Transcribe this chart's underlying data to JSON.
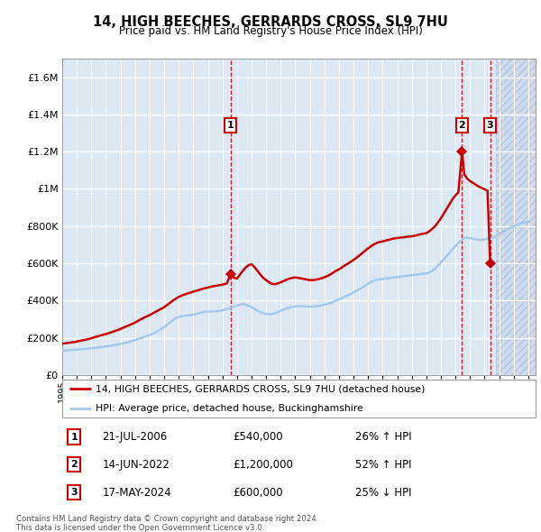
{
  "title": "14, HIGH BEECHES, GERRARDS CROSS, SL9 7HU",
  "subtitle": "Price paid vs. HM Land Registry's House Price Index (HPI)",
  "legend_line1": "14, HIGH BEECHES, GERRARDS CROSS, SL9 7HU (detached house)",
  "legend_line2": "HPI: Average price, detached house, Buckinghamshire",
  "footer1": "Contains HM Land Registry data © Crown copyright and database right 2024.",
  "footer2": "This data is licensed under the Open Government Licence v3.0.",
  "transactions": [
    {
      "num": 1,
      "date": "21-JUL-2006",
      "price": "£540,000",
      "hpi": "26% ↑ HPI",
      "year": 2006.55,
      "price_val": 540000
    },
    {
      "num": 2,
      "date": "14-JUN-2022",
      "price": "£1,200,000",
      "hpi": "52% ↑ HPI",
      "year": 2022.45,
      "price_val": 1200000
    },
    {
      "num": 3,
      "date": "17-MAY-2024",
      "price": "£600,000",
      "hpi": "25% ↓ HPI",
      "year": 2024.38,
      "price_val": 600000
    }
  ],
  "hpi_color": "#a8c8e8",
  "price_color": "#cc0000",
  "background_color": "#dce9f5",
  "grid_color": "#ffffff",
  "ylim": [
    0,
    1700000
  ],
  "xlim_start": 1995.0,
  "xlim_end": 2027.5,
  "future_start": 2024.75,
  "yticks": [
    0,
    200000,
    400000,
    600000,
    800000,
    1000000,
    1200000,
    1400000,
    1600000
  ],
  "ytick_labels": [
    "£0",
    "£200K",
    "£400K",
    "£600K",
    "£800K",
    "£1M",
    "£1.2M",
    "£1.4M",
    "£1.6M"
  ],
  "hpi_data": [
    [
      1995.0,
      132000
    ],
    [
      1995.2,
      133000
    ],
    [
      1995.4,
      133500
    ],
    [
      1995.6,
      134000
    ],
    [
      1995.8,
      135000
    ],
    [
      1996.0,
      136000
    ],
    [
      1996.2,
      137500
    ],
    [
      1996.4,
      139000
    ],
    [
      1996.6,
      140500
    ],
    [
      1996.8,
      142000
    ],
    [
      1997.0,
      144000
    ],
    [
      1997.2,
      146000
    ],
    [
      1997.4,
      148000
    ],
    [
      1997.6,
      150000
    ],
    [
      1997.8,
      152000
    ],
    [
      1998.0,
      154000
    ],
    [
      1998.2,
      156000
    ],
    [
      1998.4,
      158000
    ],
    [
      1998.6,
      161000
    ],
    [
      1998.8,
      164000
    ],
    [
      1999.0,
      167000
    ],
    [
      1999.2,
      170000
    ],
    [
      1999.4,
      174000
    ],
    [
      1999.6,
      178000
    ],
    [
      1999.8,
      183000
    ],
    [
      2000.0,
      188000
    ],
    [
      2000.2,
      193000
    ],
    [
      2000.4,
      198000
    ],
    [
      2000.6,
      204000
    ],
    [
      2000.8,
      210000
    ],
    [
      2001.0,
      216000
    ],
    [
      2001.2,
      222000
    ],
    [
      2001.4,
      228000
    ],
    [
      2001.6,
      238000
    ],
    [
      2001.8,
      248000
    ],
    [
      2002.0,
      258000
    ],
    [
      2002.2,
      270000
    ],
    [
      2002.4,
      283000
    ],
    [
      2002.6,
      296000
    ],
    [
      2002.8,
      306000
    ],
    [
      2003.0,
      312000
    ],
    [
      2003.2,
      316000
    ],
    [
      2003.4,
      318000
    ],
    [
      2003.6,
      320000
    ],
    [
      2003.8,
      322000
    ],
    [
      2004.0,
      325000
    ],
    [
      2004.2,
      328000
    ],
    [
      2004.4,
      332000
    ],
    [
      2004.6,
      336000
    ],
    [
      2004.8,
      340000
    ],
    [
      2005.0,
      341000
    ],
    [
      2005.2,
      341500
    ],
    [
      2005.4,
      342000
    ],
    [
      2005.6,
      343000
    ],
    [
      2005.8,
      345000
    ],
    [
      2006.0,
      348000
    ],
    [
      2006.2,
      352000
    ],
    [
      2006.4,
      356000
    ],
    [
      2006.6,
      362000
    ],
    [
      2006.8,
      368000
    ],
    [
      2007.0,
      374000
    ],
    [
      2007.2,
      378000
    ],
    [
      2007.4,
      382000
    ],
    [
      2007.6,
      378000
    ],
    [
      2007.8,
      372000
    ],
    [
      2008.0,
      365000
    ],
    [
      2008.2,
      355000
    ],
    [
      2008.4,
      345000
    ],
    [
      2008.6,
      338000
    ],
    [
      2008.8,
      332000
    ],
    [
      2009.0,
      328000
    ],
    [
      2009.2,
      327000
    ],
    [
      2009.4,
      328000
    ],
    [
      2009.6,
      332000
    ],
    [
      2009.8,
      338000
    ],
    [
      2010.0,
      345000
    ],
    [
      2010.2,
      352000
    ],
    [
      2010.4,
      358000
    ],
    [
      2010.6,
      362000
    ],
    [
      2010.8,
      366000
    ],
    [
      2011.0,
      369000
    ],
    [
      2011.2,
      370000
    ],
    [
      2011.4,
      370000
    ],
    [
      2011.6,
      369000
    ],
    [
      2011.8,
      368000
    ],
    [
      2012.0,
      367000
    ],
    [
      2012.2,
      368000
    ],
    [
      2012.4,
      369000
    ],
    [
      2012.6,
      371000
    ],
    [
      2012.8,
      374000
    ],
    [
      2013.0,
      378000
    ],
    [
      2013.2,
      382000
    ],
    [
      2013.4,
      387000
    ],
    [
      2013.6,
      393000
    ],
    [
      2013.8,
      400000
    ],
    [
      2014.0,
      407000
    ],
    [
      2014.2,
      414000
    ],
    [
      2014.4,
      421000
    ],
    [
      2014.6,
      428000
    ],
    [
      2014.8,
      435000
    ],
    [
      2015.0,
      443000
    ],
    [
      2015.2,
      452000
    ],
    [
      2015.4,
      461000
    ],
    [
      2015.6,
      470000
    ],
    [
      2015.8,
      480000
    ],
    [
      2016.0,
      490000
    ],
    [
      2016.2,
      500000
    ],
    [
      2016.4,
      508000
    ],
    [
      2016.6,
      512000
    ],
    [
      2016.8,
      514000
    ],
    [
      2017.0,
      516000
    ],
    [
      2017.2,
      518000
    ],
    [
      2017.4,
      520000
    ],
    [
      2017.6,
      522000
    ],
    [
      2017.8,
      524000
    ],
    [
      2018.0,
      526000
    ],
    [
      2018.2,
      528000
    ],
    [
      2018.4,
      530000
    ],
    [
      2018.6,
      532000
    ],
    [
      2018.8,
      534000
    ],
    [
      2019.0,
      536000
    ],
    [
      2019.2,
      538000
    ],
    [
      2019.4,
      540000
    ],
    [
      2019.6,
      542000
    ],
    [
      2019.8,
      544000
    ],
    [
      2020.0,
      546000
    ],
    [
      2020.2,
      552000
    ],
    [
      2020.4,
      560000
    ],
    [
      2020.6,
      572000
    ],
    [
      2020.8,
      588000
    ],
    [
      2021.0,
      605000
    ],
    [
      2021.2,
      622000
    ],
    [
      2021.4,
      640000
    ],
    [
      2021.6,
      658000
    ],
    [
      2021.8,
      676000
    ],
    [
      2022.0,
      694000
    ],
    [
      2022.2,
      710000
    ],
    [
      2022.4,
      724000
    ],
    [
      2022.6,
      734000
    ],
    [
      2022.8,
      738000
    ],
    [
      2023.0,
      736000
    ],
    [
      2023.2,
      732000
    ],
    [
      2023.4,
      728000
    ],
    [
      2023.6,
      726000
    ],
    [
      2023.8,
      726000
    ],
    [
      2024.0,
      728000
    ],
    [
      2024.2,
      732000
    ],
    [
      2024.4,
      736000
    ],
    [
      2024.6,
      740000
    ],
    [
      2024.75,
      745000
    ],
    [
      2025.0,
      760000
    ],
    [
      2025.5,
      780000
    ],
    [
      2026.0,
      800000
    ],
    [
      2026.5,
      815000
    ],
    [
      2027.0,
      825000
    ]
  ],
  "price_data": [
    [
      1995.0,
      168000
    ],
    [
      1995.3,
      172000
    ],
    [
      1995.6,
      175000
    ],
    [
      1995.9,
      178000
    ],
    [
      1996.0,
      180000
    ],
    [
      1996.3,
      185000
    ],
    [
      1996.6,
      190000
    ],
    [
      1996.9,
      195000
    ],
    [
      1997.0,
      198000
    ],
    [
      1997.3,
      205000
    ],
    [
      1997.6,
      212000
    ],
    [
      1997.9,
      218000
    ],
    [
      1998.0,
      220000
    ],
    [
      1998.3,
      228000
    ],
    [
      1998.6,
      236000
    ],
    [
      1998.9,
      244000
    ],
    [
      1999.0,
      248000
    ],
    [
      1999.3,
      258000
    ],
    [
      1999.6,
      268000
    ],
    [
      1999.9,
      278000
    ],
    [
      2000.0,
      282000
    ],
    [
      2000.3,
      295000
    ],
    [
      2000.6,
      308000
    ],
    [
      2000.9,
      318000
    ],
    [
      2001.0,
      322000
    ],
    [
      2001.3,
      335000
    ],
    [
      2001.6,
      348000
    ],
    [
      2001.9,
      360000
    ],
    [
      2002.0,
      365000
    ],
    [
      2002.3,
      382000
    ],
    [
      2002.6,
      400000
    ],
    [
      2002.9,
      415000
    ],
    [
      2003.0,
      420000
    ],
    [
      2003.3,
      430000
    ],
    [
      2003.6,
      438000
    ],
    [
      2003.9,
      445000
    ],
    [
      2004.0,
      448000
    ],
    [
      2004.3,
      455000
    ],
    [
      2004.6,
      462000
    ],
    [
      2004.9,
      468000
    ],
    [
      2005.0,
      470000
    ],
    [
      2005.3,
      476000
    ],
    [
      2005.6,
      480000
    ],
    [
      2005.9,
      484000
    ],
    [
      2006.0,
      486000
    ],
    [
      2006.3,
      492000
    ],
    [
      2006.55,
      540000
    ],
    [
      2006.8,
      522000
    ],
    [
      2007.0,
      518000
    ],
    [
      2007.2,
      540000
    ],
    [
      2007.4,
      560000
    ],
    [
      2007.6,
      578000
    ],
    [
      2007.8,
      590000
    ],
    [
      2008.0,
      595000
    ],
    [
      2008.2,
      580000
    ],
    [
      2008.4,
      560000
    ],
    [
      2008.6,
      540000
    ],
    [
      2008.8,
      522000
    ],
    [
      2009.0,
      510000
    ],
    [
      2009.2,
      498000
    ],
    [
      2009.4,
      490000
    ],
    [
      2009.6,
      488000
    ],
    [
      2009.8,
      492000
    ],
    [
      2010.0,
      498000
    ],
    [
      2010.2,
      505000
    ],
    [
      2010.4,
      512000
    ],
    [
      2010.6,
      518000
    ],
    [
      2010.8,
      522000
    ],
    [
      2011.0,
      524000
    ],
    [
      2011.2,
      522000
    ],
    [
      2011.4,
      519000
    ],
    [
      2011.6,
      516000
    ],
    [
      2011.8,
      513000
    ],
    [
      2012.0,
      510000
    ],
    [
      2012.2,
      510000
    ],
    [
      2012.4,
      512000
    ],
    [
      2012.6,
      515000
    ],
    [
      2012.8,
      520000
    ],
    [
      2013.0,
      525000
    ],
    [
      2013.2,
      532000
    ],
    [
      2013.4,
      540000
    ],
    [
      2013.6,
      550000
    ],
    [
      2013.8,
      560000
    ],
    [
      2014.0,
      568000
    ],
    [
      2014.2,
      578000
    ],
    [
      2014.4,
      588000
    ],
    [
      2014.6,
      598000
    ],
    [
      2014.8,
      608000
    ],
    [
      2015.0,
      618000
    ],
    [
      2015.2,
      630000
    ],
    [
      2015.4,
      642000
    ],
    [
      2015.6,
      655000
    ],
    [
      2015.8,
      668000
    ],
    [
      2016.0,
      680000
    ],
    [
      2016.2,
      692000
    ],
    [
      2016.4,
      702000
    ],
    [
      2016.6,
      710000
    ],
    [
      2016.8,
      715000
    ],
    [
      2017.0,
      718000
    ],
    [
      2017.2,
      722000
    ],
    [
      2017.4,
      726000
    ],
    [
      2017.6,
      730000
    ],
    [
      2017.8,
      734000
    ],
    [
      2018.0,
      736000
    ],
    [
      2018.2,
      738000
    ],
    [
      2018.4,
      740000
    ],
    [
      2018.6,
      742000
    ],
    [
      2018.8,
      744000
    ],
    [
      2019.0,
      745000
    ],
    [
      2019.2,
      748000
    ],
    [
      2019.4,
      752000
    ],
    [
      2019.6,
      756000
    ],
    [
      2019.8,
      760000
    ],
    [
      2020.0,
      762000
    ],
    [
      2020.2,
      772000
    ],
    [
      2020.4,
      785000
    ],
    [
      2020.6,
      800000
    ],
    [
      2020.8,
      820000
    ],
    [
      2021.0,
      842000
    ],
    [
      2021.2,
      868000
    ],
    [
      2021.4,
      895000
    ],
    [
      2021.6,
      920000
    ],
    [
      2021.8,
      945000
    ],
    [
      2022.0,
      965000
    ],
    [
      2022.2,
      982000
    ],
    [
      2022.45,
      1200000
    ],
    [
      2022.6,
      1080000
    ],
    [
      2022.8,
      1055000
    ],
    [
      2023.0,
      1042000
    ],
    [
      2023.2,
      1032000
    ],
    [
      2023.4,
      1022000
    ],
    [
      2023.6,
      1012000
    ],
    [
      2023.8,
      1005000
    ],
    [
      2024.0,
      998000
    ],
    [
      2024.2,
      990000
    ],
    [
      2024.38,
      600000
    ]
  ]
}
